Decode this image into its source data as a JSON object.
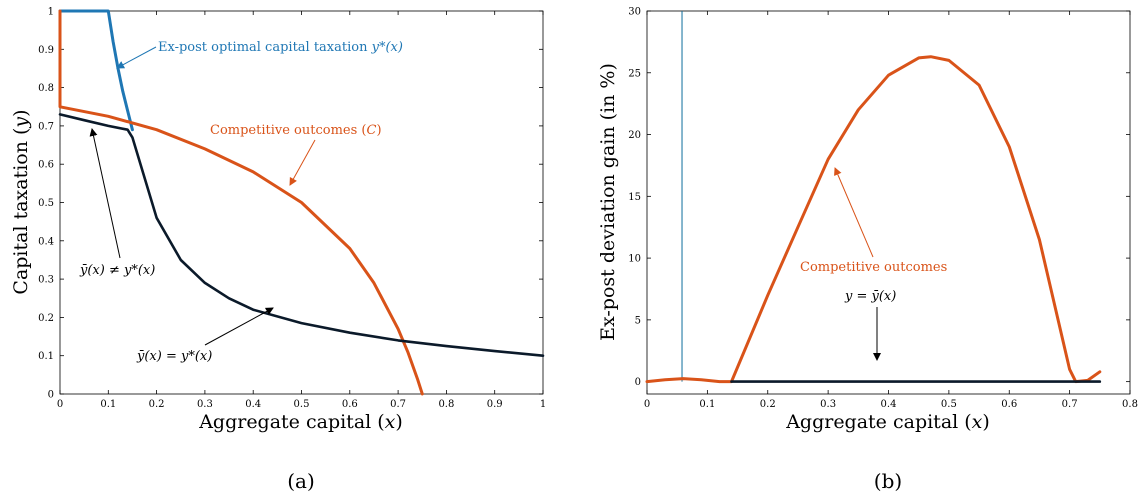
{
  "colors": {
    "blue": "#1f77b4",
    "orange": "#d95319",
    "black": "#0b1a2a",
    "thinblue": "#0e6e9c"
  },
  "chart_data": [
    {
      "type": "line",
      "caption": "(a)",
      "xlabel_pre": "Aggregate capital (",
      "xlabel_var": "x",
      "xlabel_post": ")",
      "ylabel_pre": "Capital taxation (",
      "ylabel_var": "y",
      "ylabel_post": ")",
      "xlim": [
        0,
        1
      ],
      "ylim": [
        0,
        1
      ],
      "xticks": [
        "0",
        "0.1",
        "0.2",
        "0.3",
        "0.4",
        "0.5",
        "0.6",
        "0.7",
        "0.8",
        "0.9",
        "1"
      ],
      "xtick_values": [
        0,
        0.1,
        0.2,
        0.3,
        0.4,
        0.5,
        0.6,
        0.7,
        0.8,
        0.9,
        1
      ],
      "yticks": [
        "0",
        "0.1",
        "0.2",
        "0.3",
        "0.4",
        "0.5",
        "0.6",
        "0.7",
        "0.8",
        "0.9",
        "1"
      ],
      "ytick_values": [
        0,
        0.1,
        0.2,
        0.3,
        0.4,
        0.5,
        0.6,
        0.7,
        0.8,
        0.9,
        1
      ],
      "series": [
        {
          "id": "ex-post-optimal",
          "color": "blue",
          "x": [
            0,
            0.1,
            0.11,
            0.12,
            0.13,
            0.14,
            0.15
          ],
          "y": [
            1,
            1,
            0.92,
            0.85,
            0.79,
            0.74,
            0.69
          ]
        },
        {
          "id": "competitive",
          "color": "orange",
          "x": [
            0,
            0,
            0.1,
            0.2,
            0.3,
            0.4,
            0.5,
            0.6,
            0.65,
            0.7,
            0.72,
            0.74,
            0.75
          ],
          "y": [
            1,
            0.75,
            0.725,
            0.69,
            0.64,
            0.58,
            0.5,
            0.38,
            0.29,
            0.17,
            0.11,
            0.04,
            0
          ]
        },
        {
          "id": "ybar",
          "color": "black",
          "x": [
            0,
            0.05,
            0.1,
            0.14,
            0.15,
            0.2,
            0.25,
            0.3,
            0.35,
            0.4,
            0.5,
            0.6,
            0.7,
            0.8,
            0.9,
            1.0
          ],
          "y": [
            0.73,
            0.715,
            0.7,
            0.69,
            0.67,
            0.46,
            0.35,
            0.29,
            0.25,
            0.22,
            0.185,
            0.16,
            0.14,
            0.125,
            0.112,
            0.1
          ]
        }
      ],
      "annotations": [
        {
          "text_pre": "Ex-post optimal capital taxation ",
          "text_math": "y*(x)",
          "color": "blue"
        },
        {
          "text_pre": "Competitive outcomes (",
          "text_math": "C",
          "text_post": ")",
          "color": "orange"
        },
        {
          "text_math": "ȳ(x) ≠ y*(x)",
          "color": "black"
        },
        {
          "text_math": "ȳ(x) = y*(x)",
          "color": "black"
        }
      ]
    },
    {
      "type": "line",
      "caption": "(b)",
      "xlabel_pre": "Aggregate capital (",
      "xlabel_var": "x",
      "xlabel_post": ")",
      "ylabel": "Ex-post deviation gain (in %)",
      "xlim": [
        0,
        0.8
      ],
      "ylim": [
        -1,
        30
      ],
      "xticks": [
        "0",
        "0.1",
        "0.2",
        "0.3",
        "0.4",
        "0.5",
        "0.6",
        "0.7",
        "0.8"
      ],
      "xtick_values": [
        0,
        0.1,
        0.2,
        0.3,
        0.4,
        0.5,
        0.6,
        0.7,
        0.8
      ],
      "yticks": [
        "0",
        "5",
        "10",
        "15",
        "20",
        "25",
        "30"
      ],
      "ytick_values": [
        0,
        5,
        10,
        15,
        20,
        25,
        30
      ],
      "vline_x": 0.058,
      "series": [
        {
          "id": "competitive-gain",
          "color": "orange",
          "x": [
            0,
            0.03,
            0.06,
            0.09,
            0.12,
            0.14,
            0.2,
            0.25,
            0.3,
            0.35,
            0.4,
            0.45,
            0.47,
            0.5,
            0.55,
            0.6,
            0.65,
            0.7,
            0.71,
            0.73,
            0.75
          ],
          "y": [
            0,
            0.15,
            0.25,
            0.15,
            0.0,
            0.0,
            7.0,
            12.5,
            18.0,
            22.0,
            24.8,
            26.2,
            26.3,
            26.0,
            24.0,
            19.0,
            11.5,
            1.0,
            0,
            0.1,
            0.8
          ]
        },
        {
          "id": "zero-gain",
          "color": "black",
          "x": [
            0.14,
            0.75
          ],
          "y": [
            0,
            0
          ]
        }
      ],
      "annotations": [
        {
          "text": "Competitive outcomes",
          "color": "orange"
        },
        {
          "text_math": "y = ȳ(x)",
          "color": "black"
        }
      ]
    }
  ]
}
